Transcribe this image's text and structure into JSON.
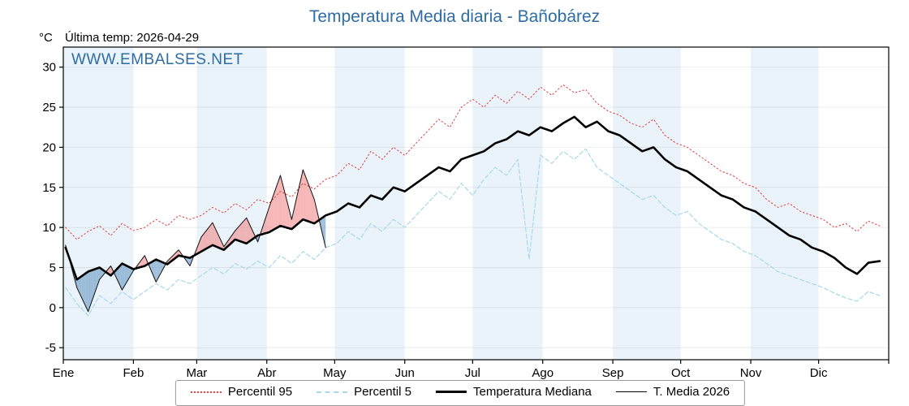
{
  "title": "Temperatura Media diaria - Bañobárez",
  "unit": "°C",
  "subtitle": "Última temp: 2026-04-29",
  "watermark": "WWW.EMBALSES.NET",
  "chart_data": {
    "type": "line",
    "title": "Temperatura Media diaria - Bañobárez",
    "ylabel": "°C",
    "ylim": [
      -6.5,
      32.5
    ],
    "y_ticks": [
      -5,
      0,
      5,
      10,
      15,
      20,
      25,
      30
    ],
    "x_tick_labels": [
      "Ene",
      "Feb",
      "Mar",
      "Abr",
      "May",
      "Jun",
      "Jul",
      "Ago",
      "Sep",
      "Oct",
      "Nov",
      "Dic"
    ],
    "month_boundaries": [
      0,
      31,
      59,
      90,
      120,
      151,
      181,
      212,
      243,
      273,
      304,
      334,
      365
    ],
    "grid": true,
    "legend_position": "bottom",
    "stripe_color": "#eaf3fa",
    "sample_days_full": [
      1,
      6,
      11,
      16,
      21,
      26,
      31,
      36,
      41,
      46,
      51,
      56,
      61,
      66,
      71,
      76,
      81,
      86,
      91,
      96,
      101,
      106,
      111,
      116,
      121,
      126,
      131,
      136,
      141,
      146,
      151,
      156,
      161,
      166,
      171,
      176,
      181,
      186,
      191,
      196,
      201,
      206,
      211,
      216,
      221,
      226,
      231,
      236,
      241,
      246,
      251,
      256,
      261,
      266,
      271,
      276,
      281,
      286,
      291,
      296,
      301,
      306,
      311,
      316,
      321,
      326,
      331,
      336,
      341,
      346,
      351,
      356,
      361
    ],
    "sample_days_2026": [
      1,
      6,
      11,
      16,
      21,
      26,
      31,
      36,
      41,
      46,
      51,
      56,
      61,
      66,
      71,
      76,
      81,
      86,
      91,
      96,
      101,
      106,
      111,
      116
    ],
    "series": [
      {
        "name": "Percentil 95",
        "color": "#e23b3b",
        "style": "dotted",
        "width": 1,
        "days_key": "sample_days_full",
        "values": [
          10.0,
          8.5,
          9.5,
          10.2,
          9.0,
          10.5,
          9.6,
          10.0,
          11.0,
          10.2,
          11.5,
          11.0,
          11.5,
          12.5,
          11.8,
          13.0,
          12.2,
          13.5,
          13.0,
          14.5,
          13.8,
          15.5,
          14.8,
          16.0,
          16.5,
          18.0,
          17.2,
          19.5,
          18.5,
          20.0,
          19.0,
          20.5,
          22.0,
          23.5,
          22.5,
          25.0,
          26.0,
          25.0,
          26.5,
          25.5,
          27.0,
          26.0,
          27.5,
          26.5,
          27.8,
          26.8,
          27.2,
          25.5,
          24.5,
          24.0,
          23.0,
          22.5,
          23.5,
          21.5,
          20.5,
          20.0,
          19.0,
          18.0,
          17.0,
          16.5,
          15.5,
          15.0,
          13.5,
          12.5,
          13.0,
          12.0,
          11.5,
          11.0,
          10.0,
          10.5,
          9.5,
          10.8,
          10.2
        ]
      },
      {
        "name": "Percentil 5",
        "color": "#a8d8ea",
        "style": "dashed",
        "width": 1.2,
        "days_key": "sample_days_full",
        "values": [
          2.5,
          0.5,
          -1.0,
          1.5,
          0.5,
          2.0,
          1.0,
          2.0,
          3.0,
          2.2,
          3.5,
          3.0,
          4.0,
          5.0,
          4.2,
          5.5,
          4.8,
          5.8,
          5.0,
          6.5,
          5.5,
          7.0,
          6.0,
          7.5,
          8.0,
          9.5,
          8.5,
          10.5,
          9.5,
          11.0,
          10.0,
          11.5,
          13.0,
          14.5,
          13.5,
          15.5,
          14.0,
          16.0,
          17.5,
          16.5,
          18.5,
          6.0,
          19.0,
          18.0,
          19.5,
          18.5,
          19.8,
          17.5,
          16.5,
          15.5,
          14.5,
          13.5,
          14.0,
          12.5,
          11.5,
          12.0,
          10.5,
          9.5,
          8.5,
          8.0,
          7.0,
          6.5,
          5.5,
          4.5,
          4.0,
          3.5,
          3.0,
          2.5,
          1.8,
          1.2,
          0.8,
          2.0,
          1.5
        ]
      },
      {
        "name": "Temperatura Mediana",
        "color": "#000000",
        "style": "solid",
        "width": 2.6,
        "days_key": "sample_days_full",
        "values": [
          7.5,
          3.5,
          4.5,
          5.0,
          4.0,
          5.5,
          4.8,
          5.2,
          6.0,
          5.4,
          6.5,
          6.2,
          7.0,
          7.8,
          7.2,
          8.5,
          8.0,
          9.0,
          9.4,
          10.2,
          9.8,
          11.0,
          10.5,
          11.5,
          12.0,
          13.0,
          12.5,
          14.0,
          13.5,
          15.0,
          14.5,
          15.5,
          16.5,
          17.5,
          17.0,
          18.5,
          19.0,
          19.5,
          20.5,
          21.0,
          22.0,
          21.5,
          22.5,
          22.0,
          23.0,
          23.8,
          22.5,
          23.2,
          22.0,
          21.5,
          20.5,
          19.5,
          20.0,
          18.5,
          17.5,
          17.0,
          16.0,
          15.0,
          14.0,
          13.5,
          12.5,
          12.0,
          11.0,
          10.0,
          9.0,
          8.5,
          7.5,
          7.0,
          6.2,
          5.0,
          4.2,
          5.6,
          5.8
        ]
      },
      {
        "name": "T. Media 2026",
        "color": "#111111",
        "style": "solid",
        "width": 1,
        "days_key": "sample_days_2026",
        "values": [
          7.8,
          2.5,
          -0.5,
          3.5,
          5.2,
          2.2,
          4.6,
          6.5,
          3.2,
          5.8,
          7.2,
          5.2,
          8.8,
          10.6,
          7.6,
          9.6,
          11.2,
          8.2,
          12.5,
          16.5,
          11.0,
          17.2,
          13.5,
          7.5
        ]
      }
    ],
    "fill_between": {
      "upper_series": "T. Media 2026",
      "lower_series": "Temperatura Mediana",
      "above_color": "#f09090",
      "below_color": "#6f9ec7",
      "opacity": 0.65
    }
  },
  "legend": {
    "items": [
      {
        "label": "Percentil 95"
      },
      {
        "label": "Percentil 5"
      },
      {
        "label": "Temperatura Mediana"
      },
      {
        "label": "T. Media 2026"
      }
    ]
  }
}
